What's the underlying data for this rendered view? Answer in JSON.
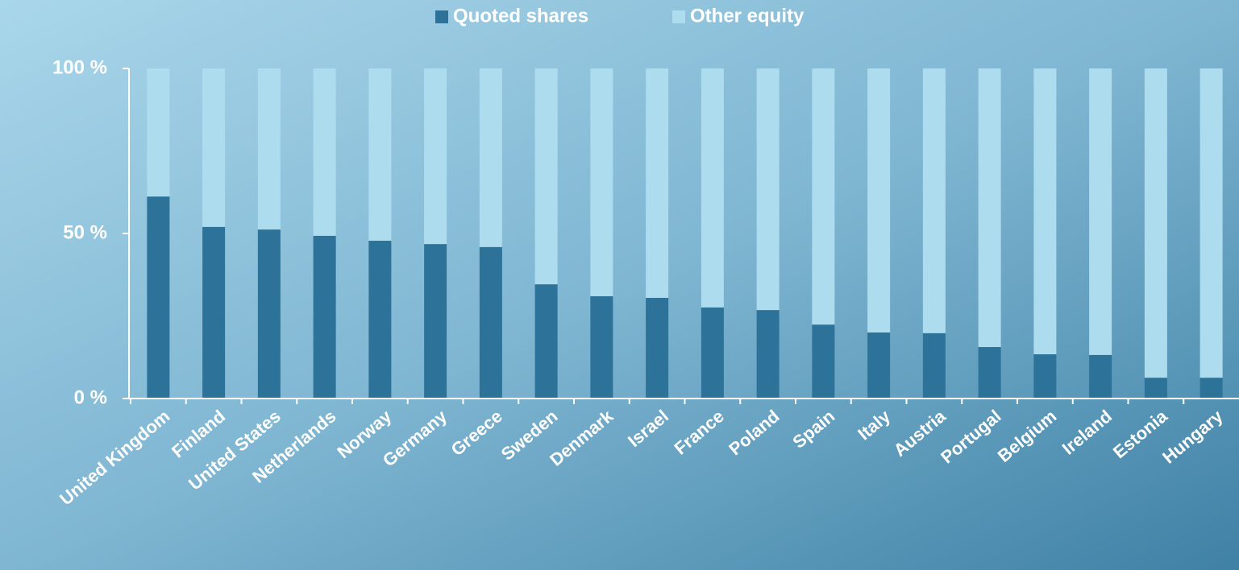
{
  "chart_data": {
    "type": "stacked_bar",
    "categories": [
      "United Kingdom",
      "Finland",
      "United States",
      "Netherlands",
      "Norway",
      "Germany",
      "Greece",
      "Sweden",
      "Denmark",
      "Israel",
      "France",
      "Poland",
      "Spain",
      "Italy",
      "Austria",
      "Portugal",
      "Belgium",
      "Ireland",
      "Estonia",
      "Hungary"
    ],
    "series": [
      {
        "name": "Quoted shares",
        "color": "#2c7299",
        "values": [
          61.2,
          52,
          51.2,
          49.3,
          47.8,
          46.8,
          45.9,
          34.6,
          31,
          30.5,
          27.6,
          26.8,
          22.4,
          20,
          19.8,
          15.6,
          13.4,
          13.2,
          6.3,
          6.3
        ]
      },
      {
        "name": "Other equity",
        "color": "#aedcef",
        "values": [
          38.8,
          48,
          48.8,
          50.7,
          52.2,
          53.2,
          54.1,
          65.4,
          69,
          69.5,
          72.4,
          73.2,
          77.6,
          80,
          80.2,
          84.4,
          86.6,
          86.8,
          93.7,
          93.7
        ]
      }
    ],
    "ylim": [
      0,
      100
    ],
    "yticks": [
      {
        "value": 0,
        "label": "0 %"
      },
      {
        "value": 50,
        "label": "50 %"
      },
      {
        "value": 100,
        "label": "100 %"
      }
    ],
    "legend": "top"
  }
}
